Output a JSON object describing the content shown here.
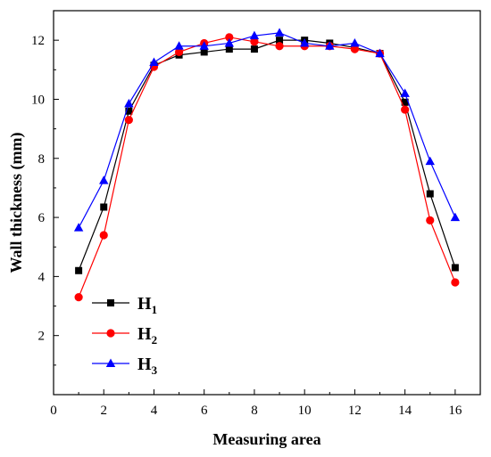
{
  "chart_data": {
    "type": "line",
    "xlabel": "Measuring area",
    "ylabel": "Wall thickness (mm)",
    "xlim": [
      0,
      17
    ],
    "ylim": [
      0,
      13
    ],
    "xticks": [
      0,
      2,
      4,
      6,
      8,
      10,
      12,
      14,
      16
    ],
    "yticks": [
      2,
      4,
      6,
      8,
      10,
      12
    ],
    "grid": false,
    "legend_position": "bottom-left",
    "x": [
      1,
      2,
      3,
      4,
      5,
      6,
      7,
      8,
      9,
      10,
      11,
      12,
      13,
      14,
      15,
      16
    ],
    "series": [
      {
        "name": "H1",
        "label_main": "H",
        "label_sub": "1",
        "color": "#000000",
        "marker": "square",
        "values": [
          4.2,
          6.35,
          9.6,
          11.15,
          11.5,
          11.6,
          11.7,
          11.7,
          12.0,
          12.0,
          11.9,
          11.75,
          11.55,
          9.9,
          6.8,
          4.3
        ]
      },
      {
        "name": "H2",
        "label_main": "H",
        "label_sub": "2",
        "color": "#ff0000",
        "marker": "circle",
        "values": [
          3.3,
          5.4,
          9.3,
          11.1,
          11.6,
          11.9,
          12.1,
          11.95,
          11.8,
          11.8,
          11.8,
          11.7,
          11.55,
          9.65,
          5.9,
          3.8
        ]
      },
      {
        "name": "H3",
        "label_main": "H",
        "label_sub": "3",
        "color": "#0000ff",
        "marker": "triangle",
        "values": [
          5.65,
          7.25,
          9.85,
          11.25,
          11.8,
          11.8,
          11.9,
          12.15,
          12.25,
          11.9,
          11.8,
          11.9,
          11.55,
          10.2,
          7.9,
          6.0
        ]
      }
    ]
  }
}
